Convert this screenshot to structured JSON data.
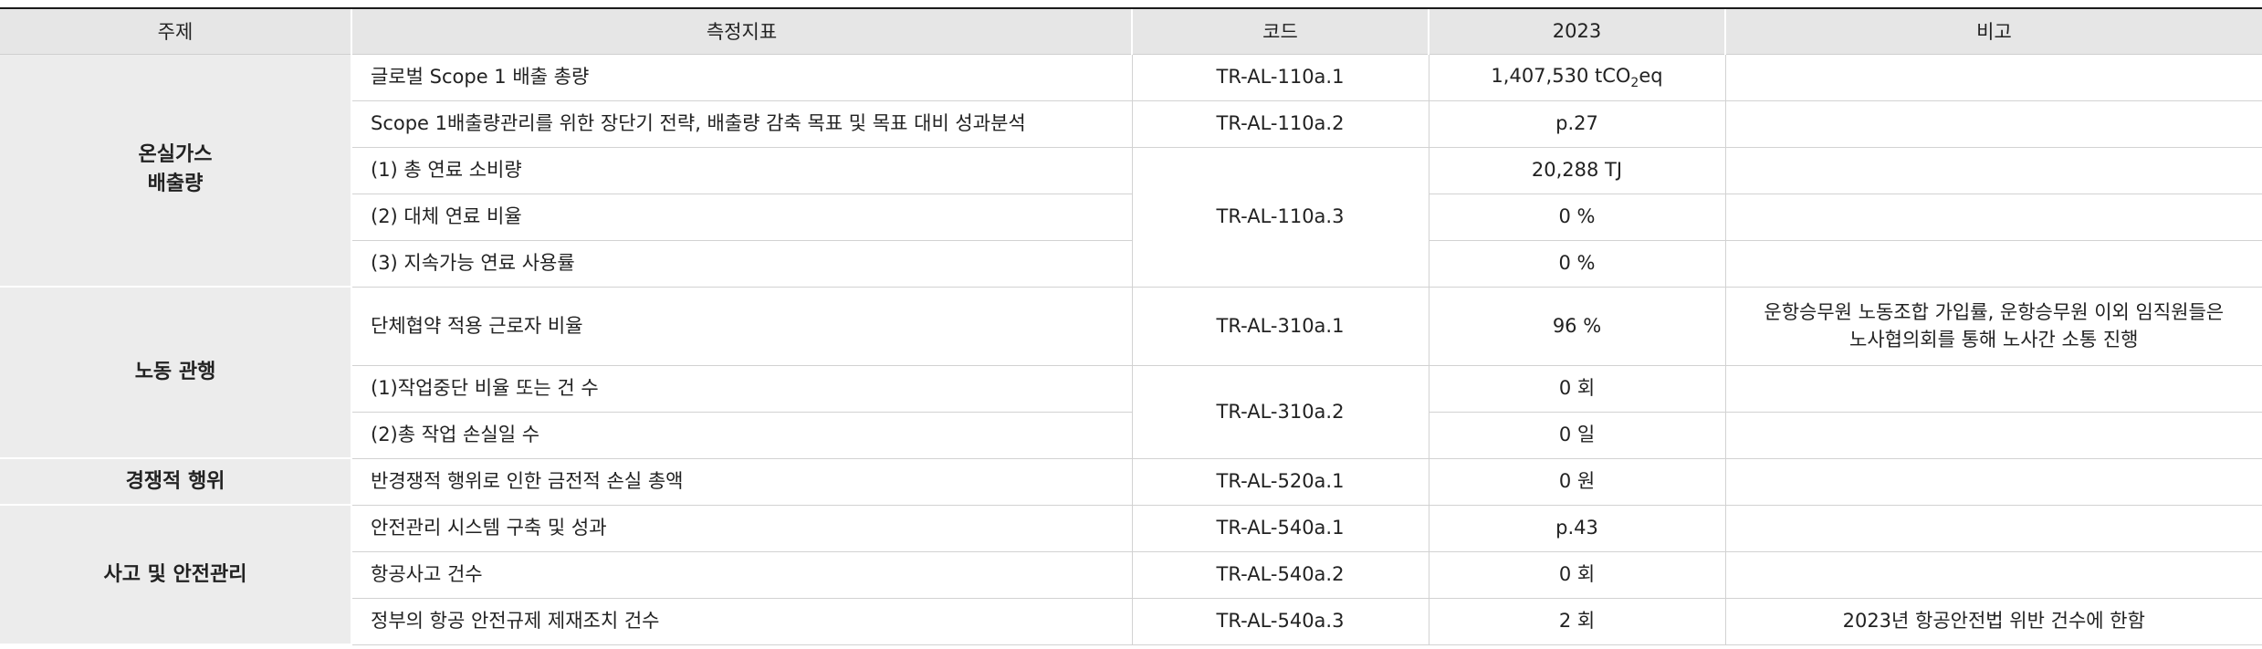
{
  "headers": {
    "topic": "주제",
    "metric": "측정지표",
    "code": "코드",
    "year": "2023",
    "note": "비고"
  },
  "sections": {
    "ghg": {
      "topic_line1": "온실가스",
      "topic_line2": "배출량",
      "rows": [
        {
          "metric": "글로벌 Scope 1 배출 총량",
          "code": "TR-AL-110a.1",
          "value_main": "1,407,530 tCO",
          "value_sub": "2",
          "value_tail": "eq",
          "note": ""
        },
        {
          "metric": "Scope 1배출량관리를 위한 장단기 전략, 배출량 감축 목표 및 목표 대비 성과분석",
          "code": "TR-AL-110a.2",
          "value": "p.27",
          "note": ""
        },
        {
          "metric": "(1) 총 연료 소비량",
          "code": "TR-AL-110a.3",
          "value": "20,288 TJ",
          "note": ""
        },
        {
          "metric": "(2) 대체 연료 비율",
          "value": "0 %",
          "note": ""
        },
        {
          "metric": "(3) 지속가능 연료 사용률",
          "value": "0 %",
          "note": ""
        }
      ]
    },
    "labor": {
      "topic": "노동 관행",
      "rows": [
        {
          "metric": "단체협약 적용 근로자 비율",
          "code": "TR-AL-310a.1",
          "value": "96 %",
          "note_line1": "운항승무원 노동조합 가입률, 운항승무원 이외 임직원들은",
          "note_line2": "노사협의회를 통해 노사간 소통 진행"
        },
        {
          "metric": "(1)작업중단 비율 또는 건 수",
          "code": "TR-AL-310a.2",
          "value": "0 회",
          "note": ""
        },
        {
          "metric": "(2)총 작업 손실일 수",
          "value": "0 일",
          "note": ""
        }
      ]
    },
    "competition": {
      "topic": "경쟁적 행위",
      "rows": [
        {
          "metric": "반경쟁적 행위로 인한 금전적 손실 총액",
          "code": "TR-AL-520a.1",
          "value": "0 원",
          "note": ""
        }
      ]
    },
    "safety": {
      "topic": "사고 및 안전관리",
      "rows": [
        {
          "metric": "안전관리 시스템 구축 및 성과",
          "code": "TR-AL-540a.1",
          "value": "p.43",
          "note": ""
        },
        {
          "metric": "항공사고 건수",
          "code": "TR-AL-540a.2",
          "value": "0 회",
          "note": ""
        },
        {
          "metric": "정부의 항공 안전규제 제재조치 건수",
          "code": "TR-AL-540a.3",
          "value": "2 회",
          "note": "2023년 항공안전법 위반 건수에 한함"
        }
      ]
    }
  }
}
